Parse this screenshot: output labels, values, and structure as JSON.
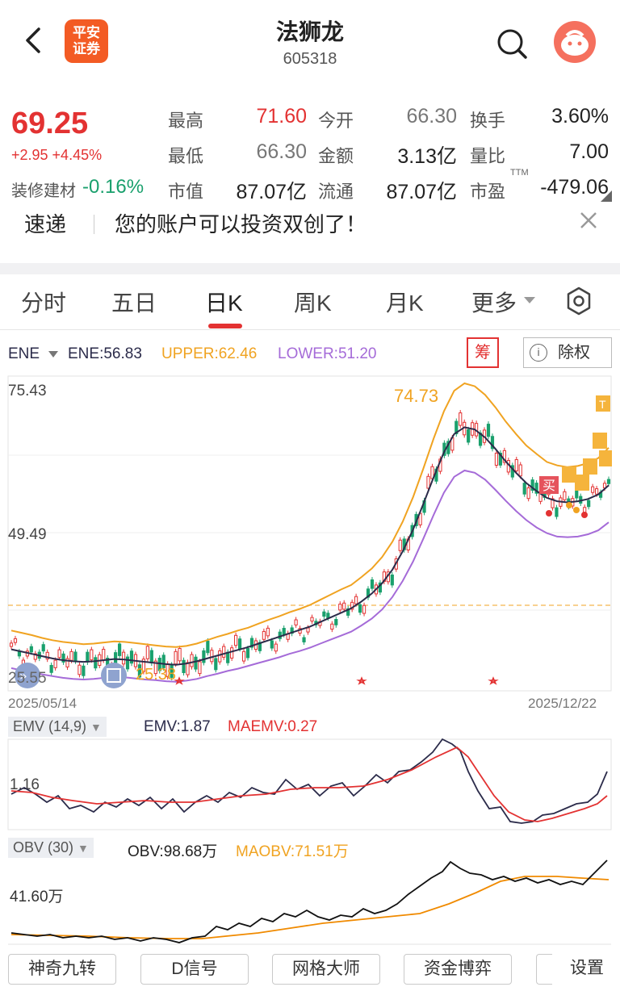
{
  "header": {
    "logo_line1": "平安",
    "logo_line2": "证券",
    "stock_name": "法狮龙",
    "stock_code": "605318"
  },
  "quote": {
    "price": "69.25",
    "change": "+2.95 +4.45%",
    "sector_name": "装修建材",
    "sector_change": "-0.16%",
    "fields": [
      {
        "label": "最高",
        "value": "71.60"
      },
      {
        "label": "今开",
        "value": "66.30"
      },
      {
        "label": "换手",
        "value": "3.60%"
      },
      {
        "label": "最低",
        "value": "66.30"
      },
      {
        "label": "金额",
        "value": "3.13亿"
      },
      {
        "label": "量比",
        "value": "7.00"
      },
      {
        "label": "市值",
        "value": "87.07亿"
      },
      {
        "label": "流通",
        "value": "87.07亿"
      },
      {
        "label": "市盈",
        "value": "-479.06"
      }
    ],
    "ttm": "TTM"
  },
  "news": {
    "tag": "速递",
    "text": "您的账户可以投资双创了！"
  },
  "tabs": [
    "分时",
    "五日",
    "日K",
    "周K",
    "月K",
    "更多"
  ],
  "active_tab": "日K",
  "main_indicator": {
    "name": "ENE",
    "ene": "ENE:56.83",
    "upper": "UPPER:62.46",
    "lower": "LOWER:51.20",
    "chou_label": "筹",
    "chuquan_label": "除权",
    "chuquan_icon": "i"
  },
  "chart_data": {
    "type": "line",
    "y_labels": [
      "75.43",
      "49.49",
      "25.55"
    ],
    "max_label": "74.73",
    "min_label": "25.38",
    "buy_label": "买",
    "t_label": "T",
    "date_start": "2025/05/14",
    "date_end": "2025/12/22",
    "ene": [
      30,
      29.6,
      29.2,
      28.8,
      28.4,
      28.1,
      27.9,
      27.8,
      27.9,
      28.1,
      28.3,
      28.2,
      28.0,
      27.8,
      27.6,
      27.4,
      27.3,
      27.5,
      27.9,
      28.4,
      28.9,
      29.4,
      29.9,
      30.4,
      31.0,
      31.6,
      32.2,
      32.8,
      33.4,
      34.0,
      34.8,
      35.6,
      36.4,
      37.2,
      38.4,
      39.8,
      41.6,
      44.0,
      47.2,
      51.0,
      55.5,
      60.2,
      64.6,
      67.8,
      69.0,
      68.6,
      67.2,
      65.2,
      63.0,
      61.0,
      59.2,
      57.8,
      56.6,
      56.0,
      55.8,
      56.0,
      56.4,
      57.2,
      58.8
    ],
    "upper": [
      33.3,
      32.9,
      32.5,
      32.0,
      31.6,
      31.3,
      31.1,
      30.9,
      31.0,
      31.2,
      31.4,
      31.3,
      31.1,
      30.9,
      30.7,
      30.5,
      30.4,
      30.6,
      31.0,
      31.6,
      32.2,
      32.7,
      33.3,
      33.8,
      34.5,
      35.2,
      35.8,
      36.5,
      37.1,
      37.8,
      38.7,
      39.6,
      40.5,
      41.3,
      42.7,
      44.2,
      46.2,
      48.9,
      52.4,
      56.7,
      61.7,
      67.0,
      71.8,
      75.4,
      76.7,
      76.2,
      74.7,
      72.5,
      70.0,
      67.8,
      65.8,
      64.3,
      62.9,
      62.3,
      62.0,
      62.2,
      62.7,
      63.6,
      65.4
    ],
    "lower": [
      26.7,
      26.3,
      26.0,
      25.6,
      25.3,
      25.0,
      24.8,
      24.7,
      24.8,
      25.0,
      25.2,
      25.1,
      24.9,
      24.7,
      24.6,
      24.4,
      24.3,
      24.5,
      24.8,
      25.3,
      25.7,
      26.2,
      26.6,
      27.1,
      27.6,
      28.1,
      28.6,
      29.2,
      29.7,
      30.3,
      31.0,
      31.7,
      32.4,
      33.1,
      34.2,
      35.4,
      37.0,
      39.2,
      42.0,
      45.4,
      49.4,
      53.6,
      57.5,
      60.3,
      61.4,
      61.0,
      59.8,
      58.0,
      56.1,
      54.3,
      52.7,
      51.4,
      50.4,
      49.8,
      49.7,
      49.8,
      50.2,
      50.9,
      52.3
    ]
  },
  "emv": {
    "label": "EMV (14,9)",
    "emv": "EMV:1.87",
    "maemv": "MAEMV:0.27",
    "y_label": "1.16"
  },
  "obv": {
    "label": "OBV (30)",
    "obv": "OBV:98.68万",
    "maobv": "MAOBV:71.51万",
    "y_label": "41.60万"
  },
  "toolbar": [
    "神奇九转",
    "D信号",
    "网格大师",
    "资金博弈",
    "设置"
  ],
  "colors": {
    "up": "#e33232",
    "down": "#1aa06d",
    "ene": "#2b2b4a",
    "upper": "#f0a321",
    "lower": "#a56bd8"
  }
}
